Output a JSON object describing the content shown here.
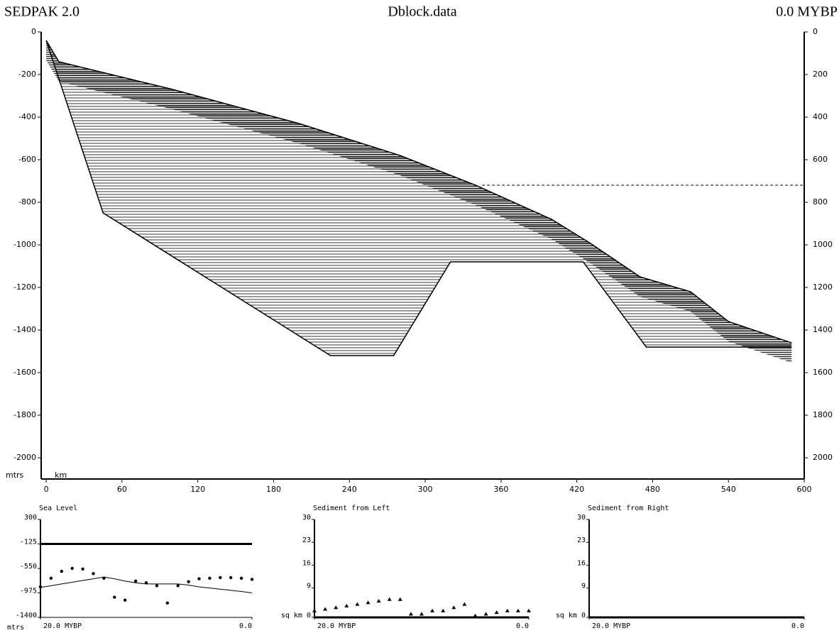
{
  "header": {
    "app_title": "SEDPAK 2.0",
    "time_label": "0.0 MYBP"
  },
  "chart_data": [
    {
      "type": "cross-section",
      "title": "Dblock.data",
      "xlabel": "km",
      "ylabel": "mtrs",
      "xlim": [
        -4,
        600
      ],
      "ylim": [
        -2083,
        0
      ],
      "y2lim": [
        2083,
        0
      ],
      "xticks": [
        0,
        60,
        120,
        180,
        240,
        300,
        360,
        420,
        480,
        540,
        600
      ],
      "yticks": [
        0,
        -200,
        -400,
        -600,
        -800,
        -1000,
        -1200,
        -1400,
        -1600,
        -1800,
        -2000
      ],
      "y2ticks": [
        0,
        200,
        400,
        600,
        800,
        1000,
        1200,
        1400,
        1600,
        1800,
        2000
      ],
      "series": [
        {
          "style": "thick",
          "color": "#000000",
          "x": [
            0,
            10,
            100,
            200,
            280,
            340,
            400,
            430,
            470,
            510,
            540,
            590
          ],
          "values": [
            -40,
            -140,
            -270,
            -430,
            -580,
            -720,
            -880,
            -990,
            -1150,
            -1220,
            -1360,
            -1460
          ]
        },
        {
          "style": "thick",
          "color": "#000000",
          "x": [
            0,
            45,
            225,
            275,
            320,
            425,
            475,
            590
          ],
          "values": [
            -40,
            -850,
            -1520,
            -1520,
            -1080,
            -1080,
            -1480,
            -1480
          ]
        },
        {
          "style": "dashed",
          "color": "#000000",
          "x": [
            345,
            600
          ],
          "values": [
            -720,
            -720
          ]
        }
      ]
    },
    {
      "type": "line",
      "title": "Sea Level",
      "ylabel": "mtrs",
      "xlim": [
        20,
        0
      ],
      "ylim": [
        -1400,
        300
      ],
      "xticks": [
        {
          "value": 20,
          "label": "20.0  MYBP"
        },
        {
          "value": 0,
          "label": "0.0"
        }
      ],
      "yticks": [
        300,
        -125,
        -550,
        -975,
        -1400
      ],
      "x": [
        20,
        19,
        18,
        17,
        16,
        15,
        14,
        13,
        12,
        11,
        10,
        9,
        8,
        7,
        6,
        5,
        4,
        3,
        2,
        1,
        0
      ],
      "series": [
        {
          "style": "thick",
          "color": "#000000",
          "values": [
            -125,
            -125,
            -125,
            -125,
            -125,
            -125,
            -125,
            -125,
            -125,
            -125,
            -125,
            -125,
            -125,
            -125,
            -125,
            -125,
            -125,
            -125,
            -125,
            -125,
            -125
          ]
        },
        {
          "style": "thin",
          "color": "#000000",
          "values": [
            -880,
            -850,
            -820,
            -790,
            -760,
            -730,
            -700,
            -730,
            -770,
            -800,
            -820,
            -820,
            -820,
            -820,
            -840,
            -870,
            -890,
            -910,
            -930,
            -950,
            -975
          ]
        },
        {
          "style": "dots",
          "color": "#000000",
          "values": [
            -870,
            -720,
            -600,
            -550,
            -560,
            -640,
            -720,
            -1050,
            -1100,
            -770,
            -800,
            -850,
            -1150,
            -850,
            -780,
            -730,
            -720,
            -710,
            -710,
            -720,
            -740
          ]
        }
      ]
    },
    {
      "type": "line",
      "title": "Sediment from Left",
      "xlim": [
        20,
        0
      ],
      "ylim": [
        0,
        30
      ],
      "xticks": [
        {
          "value": 20,
          "label": "20.0 MYBP"
        },
        {
          "value": 0,
          "label": "0.0"
        }
      ],
      "yticks": [
        30,
        23,
        16,
        9,
        {
          "value": 0,
          "label": "sq km 0"
        }
      ],
      "x": [
        20,
        19,
        18,
        17,
        16,
        15,
        14,
        13,
        12,
        11,
        10,
        9,
        8,
        7,
        6,
        5,
        4,
        3,
        2,
        1,
        0
      ],
      "series": [
        {
          "style": "thick",
          "color": "#000000",
          "values": [
            0,
            0,
            0,
            0,
            0,
            0,
            0,
            0,
            0,
            0,
            0,
            0,
            0,
            0,
            0,
            0,
            0,
            0,
            0,
            0,
            0
          ]
        },
        {
          "style": "triangles",
          "color": "#000000",
          "values": [
            2,
            2.5,
            3,
            3.5,
            4,
            4.5,
            5,
            5.5,
            5.5,
            1,
            1,
            2,
            2,
            3,
            4,
            0.5,
            1,
            1.5,
            2,
            2,
            2
          ]
        }
      ]
    },
    {
      "type": "line",
      "title": "Sediment from Right",
      "xlim": [
        20,
        0
      ],
      "ylim": [
        0,
        30
      ],
      "xticks": [
        {
          "value": 20,
          "label": "20.0 MYBP"
        },
        {
          "value": 0,
          "label": "0.0"
        }
      ],
      "yticks": [
        30,
        23,
        16,
        9,
        {
          "value": 0,
          "label": "sq km 0"
        }
      ],
      "x": [
        20,
        19,
        18,
        17,
        16,
        15,
        14,
        13,
        12,
        11,
        10,
        9,
        8,
        7,
        6,
        5,
        4,
        3,
        2,
        1,
        0
      ],
      "series": [
        {
          "style": "thick",
          "color": "#000000",
          "values": [
            0,
            0,
            0,
            0,
            0,
            0,
            0,
            0,
            0,
            0,
            0,
            0,
            0,
            0,
            0,
            0,
            0,
            0,
            0,
            0,
            0
          ]
        }
      ]
    }
  ]
}
